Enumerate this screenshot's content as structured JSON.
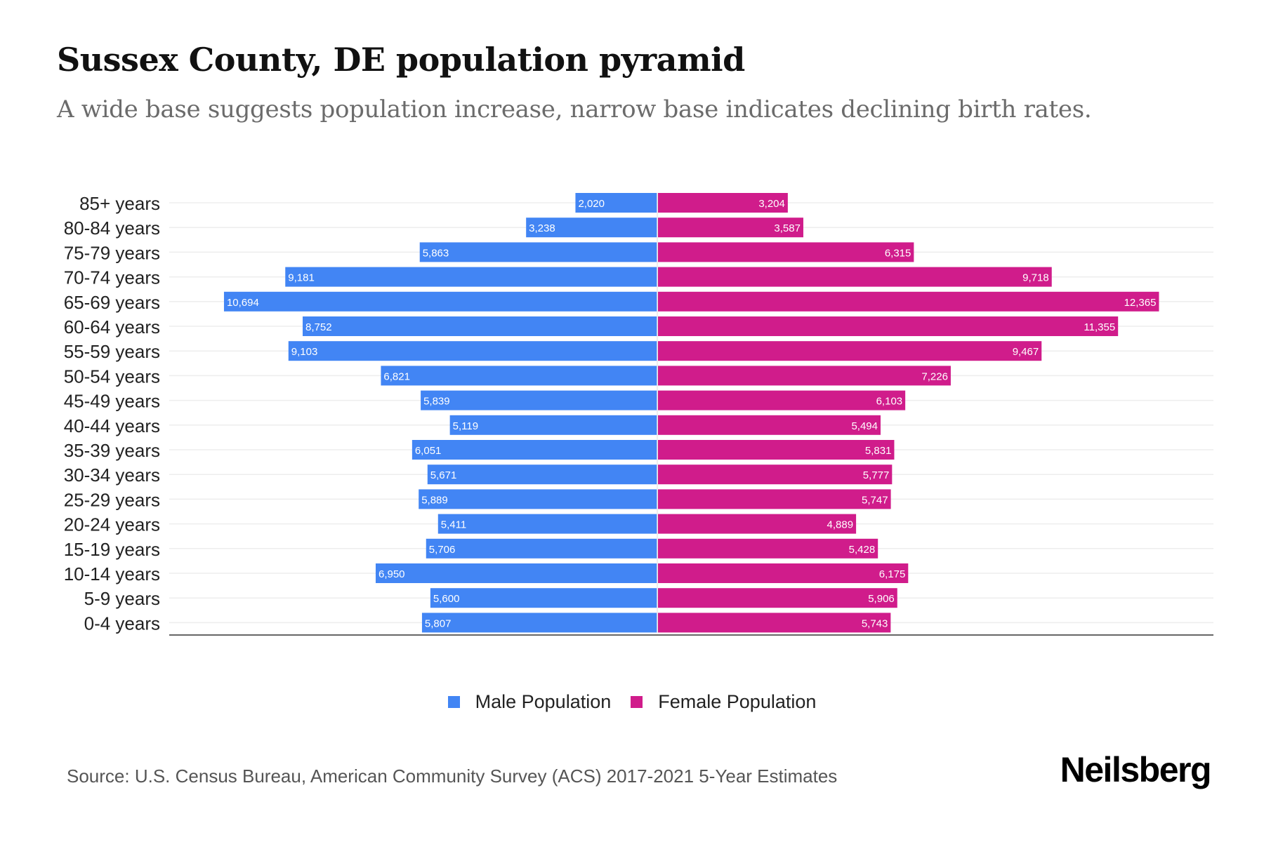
{
  "header": {
    "title": "Sussex County, DE population pyramid",
    "subtitle": "A wide base suggests population increase, narrow base indicates declining birth rates."
  },
  "legend": [
    {
      "label": "Male Population",
      "color": "#4285f4"
    },
    {
      "label": "Female Population",
      "color": "#d01c8b"
    }
  ],
  "footer": {
    "source": "Source: U.S. Census Bureau, American Community Survey (ACS) 2017-2021 5-Year Estimates",
    "logo": "Neilsberg"
  },
  "chart_data": {
    "type": "bar",
    "orientation": "horizontal-diverging",
    "title": "Sussex County, DE population pyramid",
    "subtitle": "A wide base suggests population increase, narrow base indicates declining birth rates.",
    "xlabel": "",
    "ylabel": "",
    "grid": true,
    "legend_position": "bottom",
    "categories": [
      "85+ years",
      "80-84 years",
      "75-79 years",
      "70-74 years",
      "65-69 years",
      "60-64 years",
      "55-59 years",
      "50-54 years",
      "45-49 years",
      "40-44 years",
      "35-39 years",
      "30-34 years",
      "25-29 years",
      "20-24 years",
      "15-19 years",
      "10-14 years",
      "5-9 years",
      "0-4 years"
    ],
    "series": [
      {
        "name": "Male Population",
        "color": "#4285f4",
        "side": "left",
        "values": [
          2020,
          3238,
          5863,
          9181,
          10694,
          8752,
          9103,
          6821,
          5839,
          5119,
          6051,
          5671,
          5889,
          5411,
          5706,
          6950,
          5600,
          5807
        ],
        "labels": [
          "2,020",
          "3,238",
          "5,863",
          "9,181",
          "10,694",
          "8,752",
          "9,103",
          "6,821",
          "5,839",
          "5,119",
          "6,051",
          "5,671",
          "5,889",
          "5,411",
          "5,706",
          "6,950",
          "5,600",
          "5,807"
        ]
      },
      {
        "name": "Female Population",
        "color": "#d01c8b",
        "side": "right",
        "values": [
          3204,
          3587,
          6315,
          9718,
          12365,
          11355,
          9467,
          7226,
          6103,
          5494,
          5831,
          5777,
          5747,
          4889,
          5428,
          6175,
          5906,
          5743
        ],
        "labels": [
          "3,204",
          "3,587",
          "6,315",
          "9,718",
          "12,365",
          "11,355",
          "9,467",
          "7,226",
          "6,103",
          "5,494",
          "5,831",
          "5,777",
          "5,747",
          "4,889",
          "5,428",
          "6,175",
          "5,906",
          "5,743"
        ]
      }
    ]
  }
}
